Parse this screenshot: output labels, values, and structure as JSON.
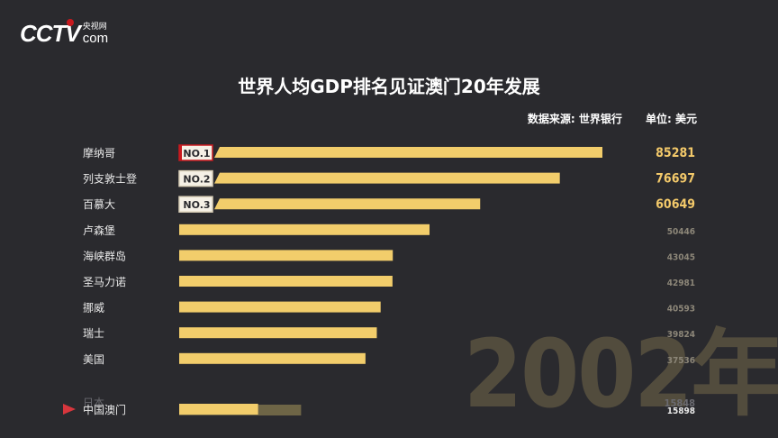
{
  "logo": {
    "mark": "CCTV",
    "cn": "央视网",
    "com": "com"
  },
  "header": {
    "title": "世界人均GDP排名见证澳门20年发展",
    "source": "数据来源: 世界银行",
    "unit": "单位: 美元"
  },
  "year_label": "2002年",
  "chart_data": {
    "type": "bar",
    "orientation": "horizontal",
    "title": "世界人均GDP排名见证澳门20年发展",
    "unit": "单位: 美元",
    "categories": [
      "摩纳哥",
      "列支敦士登",
      "百慕大",
      "卢森堡",
      "海峡群岛",
      "圣马力诺",
      "挪威",
      "瑞士",
      "美国",
      "中国澳门"
    ],
    "values": [
      85281,
      76697,
      60649,
      50446,
      43045,
      42981,
      40593,
      39824,
      37536,
      15898
    ],
    "rank_badges": [
      "NO.1",
      "NO.2",
      "NO.3"
    ],
    "highlight": "中国澳门",
    "ghost_row": {
      "label": "日本",
      "value": 15848
    },
    "colors": {
      "bar": "#f2cd6b",
      "highlight_bar": "#6e6546",
      "value_top": "#f3c96a",
      "value_rest": "#8c8678",
      "badge_first": "#c8191e",
      "marker": "#d7363d"
    }
  }
}
